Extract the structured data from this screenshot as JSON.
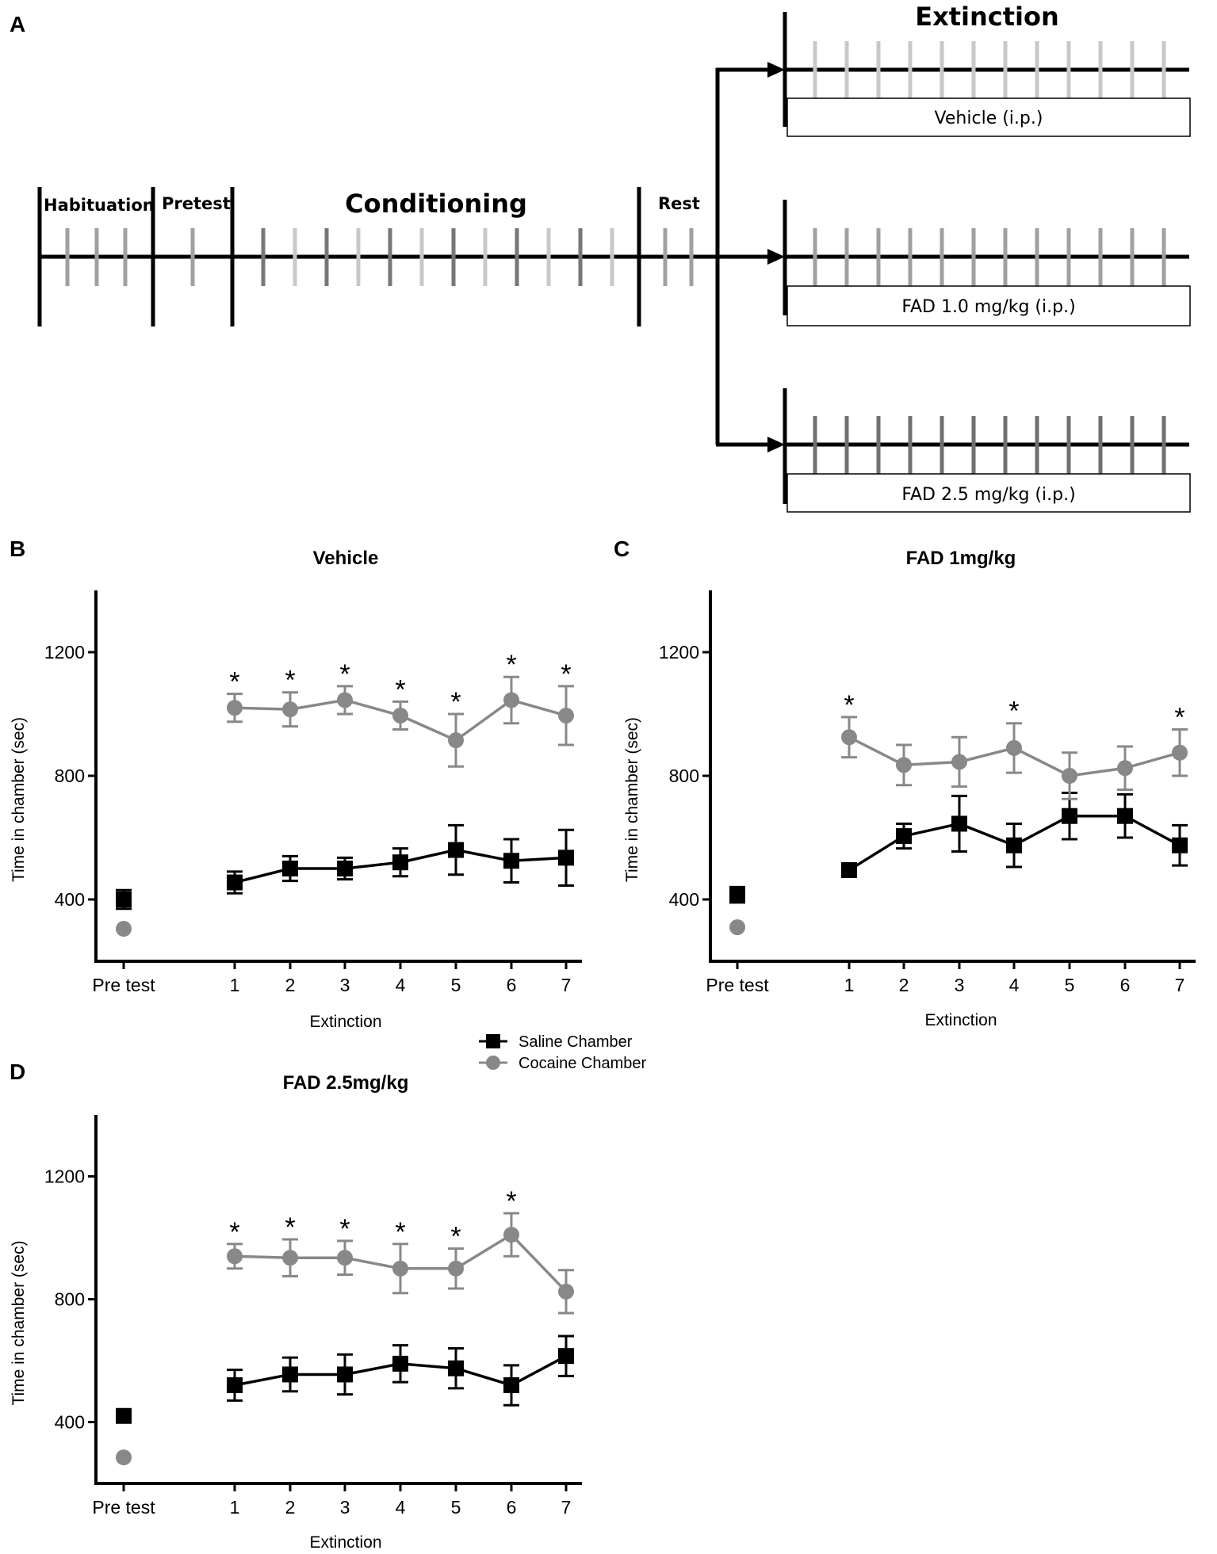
{
  "panel_labels": {
    "a": "A",
    "b": "B",
    "c": "C",
    "d": "D"
  },
  "timeline": {
    "habituation": "Habituation",
    "pretest": "Pretest",
    "conditioning": "Conditioning",
    "rest": "Rest",
    "extinction": "Extinction",
    "branches": [
      "Vehicle (i.p.)",
      "FAD 1.0 mg/kg (i.p.)",
      "FAD 2.5 mg/kg (i.p.)"
    ]
  },
  "legend": {
    "saline": "Saline Chamber",
    "cocaine": "Cocaine Chamber"
  },
  "colors": {
    "saline": "#000000",
    "cocaine": "#888888"
  },
  "chart_data": [
    {
      "type": "line",
      "title": "Vehicle",
      "xlabel": "Extinction",
      "ylabel": "Time in chamber (sec)",
      "categories": [
        "Pre test",
        "1",
        "2",
        "3",
        "4",
        "5",
        "6",
        "7"
      ],
      "yticks": [
        400,
        800,
        1200
      ],
      "ylim": [
        200,
        1400
      ],
      "series": [
        {
          "name": "Saline Chamber",
          "values": [
            400,
            455,
            500,
            500,
            520,
            560,
            525,
            535
          ],
          "errors": [
            30,
            35,
            40,
            35,
            45,
            80,
            70,
            90
          ]
        },
        {
          "name": "Cocaine Chamber",
          "values": [
            305,
            1020,
            1015,
            1045,
            995,
            915,
            1045,
            995
          ],
          "errors": [
            0,
            45,
            55,
            45,
            45,
            85,
            75,
            95
          ]
        }
      ],
      "significant": [
        "*",
        "*",
        "*",
        "*",
        "*",
        "*",
        "*"
      ],
      "sig_mask": [
        0,
        1,
        1,
        1,
        1,
        1,
        1,
        1
      ]
    },
    {
      "type": "line",
      "title": "FAD 1mg/kg",
      "xlabel": "Extinction",
      "ylabel": "Time in chamber (sec)",
      "categories": [
        "Pre test",
        "1",
        "2",
        "3",
        "4",
        "5",
        "6",
        "7"
      ],
      "yticks": [
        400,
        800,
        1200
      ],
      "ylim": [
        200,
        1400
      ],
      "series": [
        {
          "name": "Saline Chamber",
          "values": [
            415,
            495,
            605,
            645,
            575,
            670,
            670,
            575
          ],
          "errors": [
            25,
            0,
            40,
            90,
            70,
            75,
            70,
            65
          ]
        },
        {
          "name": "Cocaine Chamber",
          "values": [
            310,
            925,
            835,
            845,
            890,
            800,
            825,
            875
          ],
          "errors": [
            0,
            65,
            65,
            80,
            80,
            75,
            70,
            75
          ]
        }
      ],
      "significant": [
        "*",
        "*",
        "*"
      ],
      "sig_mask": [
        0,
        1,
        0,
        0,
        1,
        0,
        0,
        1
      ]
    },
    {
      "type": "line",
      "title": "FAD 2.5mg/kg",
      "xlabel": "Extinction",
      "ylabel": "Time in chamber (sec)",
      "categories": [
        "Pre test",
        "1",
        "2",
        "3",
        "4",
        "5",
        "6",
        "7"
      ],
      "yticks": [
        400,
        800,
        1200
      ],
      "ylim": [
        200,
        1400
      ],
      "series": [
        {
          "name": "Saline Chamber",
          "values": [
            420,
            520,
            555,
            555,
            590,
            575,
            520,
            615
          ],
          "errors": [
            20,
            50,
            55,
            65,
            60,
            65,
            65,
            65
          ]
        },
        {
          "name": "Cocaine Chamber",
          "values": [
            285,
            940,
            935,
            935,
            900,
            900,
            1010,
            825
          ],
          "errors": [
            0,
            40,
            60,
            55,
            80,
            65,
            70,
            70
          ]
        }
      ],
      "significant": [
        "*",
        "*",
        "*",
        "*",
        "*",
        "*"
      ],
      "sig_mask": [
        0,
        1,
        1,
        1,
        1,
        1,
        1,
        0
      ]
    }
  ]
}
